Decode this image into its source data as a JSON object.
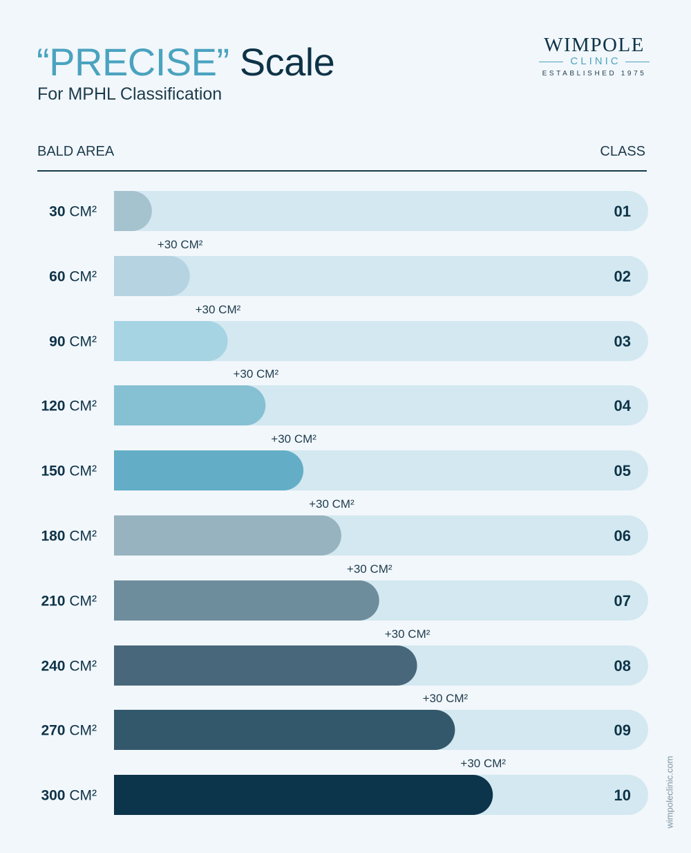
{
  "header": {
    "title_accent": "“PRECISE”",
    "title_rest": "Scale",
    "subtitle": "For MPHL Classification"
  },
  "logo": {
    "name": "WIMPOLE",
    "sub": "CLINIC",
    "established": "ESTABLISHED 1975"
  },
  "columns": {
    "left": "BALD AREA",
    "right": "CLASS"
  },
  "website": "wimpoleclinic.com",
  "colors": {
    "track": "#d3e8f0",
    "text": "#0e3347",
    "accent": "#4aa3bf"
  },
  "chart_data": {
    "type": "bar",
    "orientation": "horizontal",
    "title": "“PRECISE” Scale",
    "subtitle": "For MPHL Classification",
    "xlabel": "BALD AREA",
    "ylabel": "CLASS",
    "unit": "CM²",
    "xlim": [
      0,
      423
    ],
    "increment_label": "+30 CM²",
    "categories": [
      "01",
      "02",
      "03",
      "04",
      "05",
      "06",
      "07",
      "08",
      "09",
      "10"
    ],
    "values": [
      30,
      60,
      90,
      120,
      150,
      180,
      210,
      240,
      270,
      300
    ],
    "value_labels": [
      "30",
      "60",
      "90",
      "120",
      "150",
      "180",
      "210",
      "240",
      "270",
      "300"
    ],
    "bar_colors": [
      "#a5c2cf",
      "#b5d3e1",
      "#a6d4e3",
      "#86c0d3",
      "#63aec6",
      "#97b3bf",
      "#6e8d9c",
      "#48677b",
      "#33586b",
      "#0c344b"
    ]
  }
}
